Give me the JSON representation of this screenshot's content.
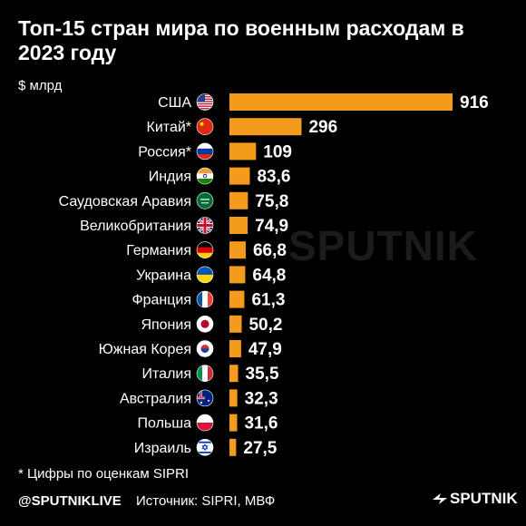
{
  "header": {
    "title": "Топ-15 стран мира по военным расходам в 2023 году",
    "unit": "$ млрд"
  },
  "footer": {
    "footnote": "*  Цифры по оценкам SIPRI",
    "handle": "@SPUTNIKLIVE",
    "source": "Источник: SIPRI, МВФ",
    "logo": "SPUTNIK"
  },
  "watermark": "SPUTNIK",
  "colors": {
    "bar": "#f59b1b",
    "background": "#000000",
    "text": "#ffffff"
  },
  "chart_data": {
    "type": "bar",
    "orientation": "horizontal",
    "categories": [
      "США",
      "Китай*",
      "Россия*",
      "Индия",
      "Саудовская Аравия",
      "Великобритания",
      "Германия",
      "Украина",
      "Франция",
      "Япония",
      "Южная Корея",
      "Италия",
      "Австралия",
      "Польша",
      "Израиль"
    ],
    "values": [
      916,
      296,
      109,
      83.6,
      75.8,
      74.9,
      66.8,
      64.8,
      61.3,
      50.2,
      47.9,
      35.5,
      32.3,
      31.6,
      27.5
    ],
    "labels": [
      "916",
      "296",
      "109",
      "83,6",
      "75,8",
      "74,9",
      "66,8",
      "64,8",
      "61,3",
      "50,2",
      "47,9",
      "35,5",
      "32,3",
      "31,6",
      "27,5"
    ],
    "flags": [
      "us-flag",
      "china-flag",
      "russia-flag",
      "india-flag",
      "saudi-arabia-flag",
      "uk-flag",
      "germany-flag",
      "ukraine-flag",
      "france-flag",
      "japan-flag",
      "south-korea-flag",
      "italy-flag",
      "australia-flag",
      "poland-flag",
      "israel-flag"
    ],
    "xlim": [
      0,
      916
    ],
    "grid": false,
    "legend": "none"
  }
}
